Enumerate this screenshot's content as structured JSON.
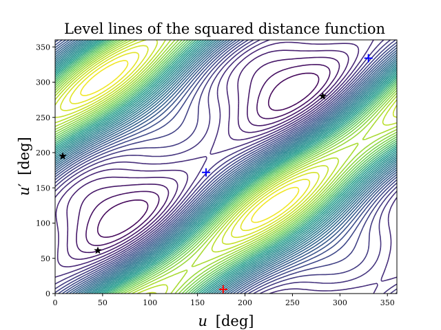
{
  "chart_data": {
    "type": "contour",
    "title": "Level lines of the squared distance function",
    "xlabel": {
      "var": "u",
      "unit": "[deg]"
    },
    "ylabel": {
      "var": "u",
      "prime": "′",
      "unit": "[deg]"
    },
    "xlim": [
      0,
      360
    ],
    "ylim": [
      0,
      360
    ],
    "xticks": [
      "0",
      "50",
      "100",
      "150",
      "200",
      "250",
      "300",
      "350"
    ],
    "yticks": [
      "0",
      "50",
      "100",
      "150",
      "200",
      "250",
      "300",
      "350"
    ],
    "grid": false,
    "legend": false,
    "colormap": "viridis",
    "level_count": 40,
    "valleys": [
      {
        "along": "lower-right band (u′ ≈ u − 120)",
        "min_value": "low"
      },
      {
        "along": "upper-left band (u′ ≈ u + 60)",
        "min_value": "low"
      }
    ],
    "peaks": [
      {
        "u": 170,
        "u_prime": 10
      },
      {
        "u": 300,
        "u_prime": 345
      }
    ],
    "markers": [
      {
        "kind": "star",
        "color": "#000000",
        "u": 8,
        "u_prime": 195
      },
      {
        "kind": "star",
        "color": "#000000",
        "u": 45,
        "u_prime": 61
      },
      {
        "kind": "star",
        "color": "#000000",
        "u": 282,
        "u_prime": 280
      },
      {
        "kind": "plus",
        "color": "#0000ff",
        "u": 159,
        "u_prime": 172
      },
      {
        "kind": "plus",
        "color": "#0000ff",
        "u": 330,
        "u_prime": 334
      },
      {
        "kind": "plus",
        "color": "#ff0000",
        "u": 177,
        "u_prime": 6
      }
    ]
  }
}
